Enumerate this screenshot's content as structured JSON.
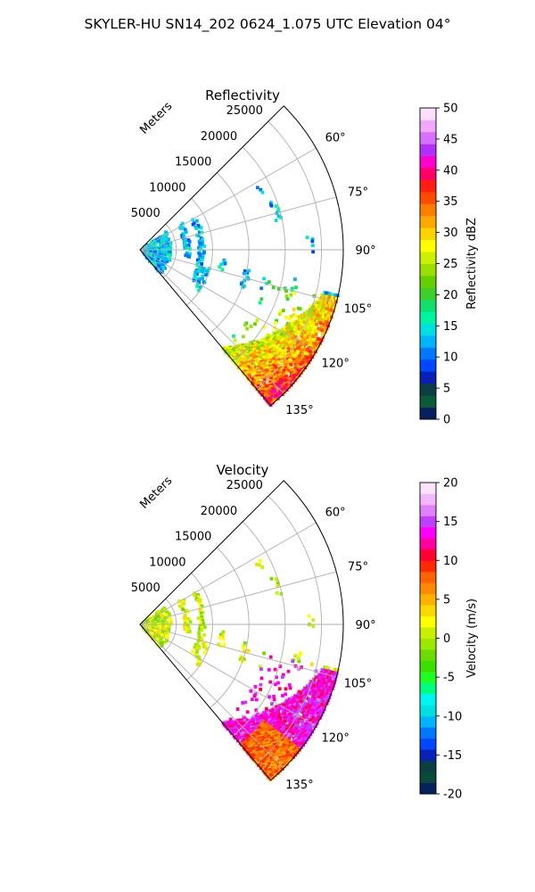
{
  "title": "SKYLER-HU  SN14_202  0624_1.075 UTC Elevation 04°",
  "chart_data": [
    {
      "type": "heatmap",
      "title": "Reflectivity",
      "projection": "polar-sector",
      "radial_axis_label": "Meters",
      "radial_ticks": [
        "5000",
        "10000",
        "15000",
        "20000",
        "25000"
      ],
      "radial_max": 28000,
      "azimuth_range_deg": [
        45,
        140
      ],
      "azimuth_ticks": [
        "60°",
        "75°",
        "90°",
        "105°",
        "120°",
        "135°"
      ],
      "grid": true,
      "colorbar": {
        "label": "Reflectivity dBZ",
        "min": 0,
        "max": 50,
        "ticks": [
          "0",
          "5",
          "10",
          "15",
          "20",
          "25",
          "30",
          "35",
          "40",
          "45",
          "50"
        ],
        "colors": [
          "#08215e",
          "#0b5a3a",
          "#0f3d44",
          "#0a1fb4",
          "#0047ff",
          "#0077ff",
          "#00b4ff",
          "#00e0e0",
          "#00f5a0",
          "#12e06a",
          "#3bd12a",
          "#64d000",
          "#9be000",
          "#cdef00",
          "#ffff00",
          "#ffd200",
          "#ffa800",
          "#ff7d00",
          "#ff4a00",
          "#ff1e14",
          "#ff0066",
          "#ff00d0",
          "#b030ff",
          "#d870ff",
          "#f0a8ff",
          "#fde0fb"
        ]
      }
    },
    {
      "type": "heatmap",
      "title": "Velocity",
      "projection": "polar-sector",
      "radial_axis_label": "Meters",
      "radial_ticks": [
        "5000",
        "10000",
        "15000",
        "20000",
        "25000"
      ],
      "radial_max": 28000,
      "azimuth_range_deg": [
        45,
        140
      ],
      "azimuth_ticks": [
        "60°",
        "75°",
        "90°",
        "105°",
        "120°",
        "135°"
      ],
      "grid": true,
      "colorbar": {
        "label": "Velocity (m/s)",
        "min": -20,
        "max": 20,
        "ticks": [
          "-20",
          "-15",
          "-10",
          "-5",
          "0",
          "5",
          "10",
          "15",
          "20"
        ],
        "colors": [
          "#08215e",
          "#0b4a3a",
          "#0f3d44",
          "#0a1fb4",
          "#0047ff",
          "#0077ff",
          "#00b4ff",
          "#00e0e0",
          "#00f5f5",
          "#00ff80",
          "#20ff20",
          "#3ce000",
          "#6cdc00",
          "#9be800",
          "#c8f000",
          "#ffff00",
          "#ffd800",
          "#ffb000",
          "#ff8a00",
          "#ff6000",
          "#ff2a00",
          "#ff0030",
          "#ff00a0",
          "#ff00ff",
          "#c040ff",
          "#e080ff",
          "#f2b8ff",
          "#fce2fb"
        ]
      }
    }
  ]
}
